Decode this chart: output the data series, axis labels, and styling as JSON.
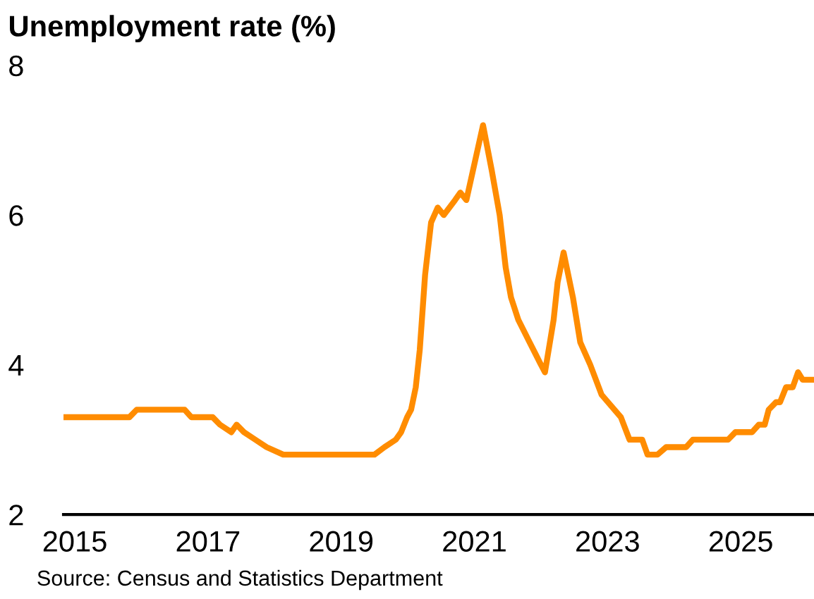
{
  "chart_data": {
    "type": "line",
    "title": "Unemployment rate (%)",
    "annotations": [
      "Source: Census and Statistics Department"
    ],
    "x": [
      2014.83,
      2015.82,
      2015.93,
      2016.65,
      2016.75,
      2017.07,
      2017.18,
      2017.35,
      2017.43,
      2017.54,
      2017.71,
      2017.88,
      2018.13,
      2019.5,
      2019.65,
      2019.82,
      2019.9,
      2019.99,
      2020.05,
      2020.12,
      2020.18,
      2020.26,
      2020.35,
      2020.45,
      2020.54,
      2020.71,
      2020.79,
      2020.88,
      2021.03,
      2021.13,
      2021.26,
      2021.38,
      2021.47,
      2021.55,
      2021.66,
      2021.83,
      2022.0,
      2022.06,
      2022.19,
      2022.25,
      2022.34,
      2022.48,
      2022.59,
      2022.74,
      2022.91,
      2023.2,
      2023.33,
      2023.52,
      2023.6,
      2023.75,
      2023.88,
      2024.18,
      2024.28,
      2024.81,
      2024.92,
      2025.17,
      2025.27,
      2025.36,
      2025.42,
      2025.53,
      2025.59,
      2025.68,
      2025.78,
      2025.86,
      2025.93,
      2026.1
    ],
    "series": [
      {
        "color": "#ff8c00",
        "values": [
          3.3,
          3.3,
          3.4,
          3.4,
          3.3,
          3.3,
          3.2,
          3.1,
          3.2,
          3.1,
          3.0,
          2.9,
          2.8,
          2.8,
          2.9,
          3.0,
          3.1,
          3.3,
          3.4,
          3.7,
          4.2,
          5.2,
          5.9,
          6.1,
          6.0,
          6.2,
          6.3,
          6.2,
          6.8,
          7.2,
          6.6,
          6.0,
          5.3,
          4.9,
          4.6,
          4.3,
          4.0,
          3.9,
          4.6,
          5.1,
          5.5,
          4.9,
          4.3,
          4.0,
          3.6,
          3.3,
          3.0,
          3.0,
          2.8,
          2.8,
          2.9,
          2.9,
          3.0,
          3.0,
          3.1,
          3.1,
          3.2,
          3.2,
          3.4,
          3.5,
          3.5,
          3.7,
          3.7,
          3.9,
          3.8,
          3.8
        ]
      }
    ],
    "xlim": [
      2014.83,
      2026.1
    ],
    "ylim": [
      2,
      8
    ],
    "xticks": [
      2015,
      2017,
      2019,
      2021,
      2023,
      2025
    ],
    "yticks": [
      2,
      4,
      6,
      8
    ],
    "grid": false,
    "line_style": "solid",
    "marker": "none"
  }
}
